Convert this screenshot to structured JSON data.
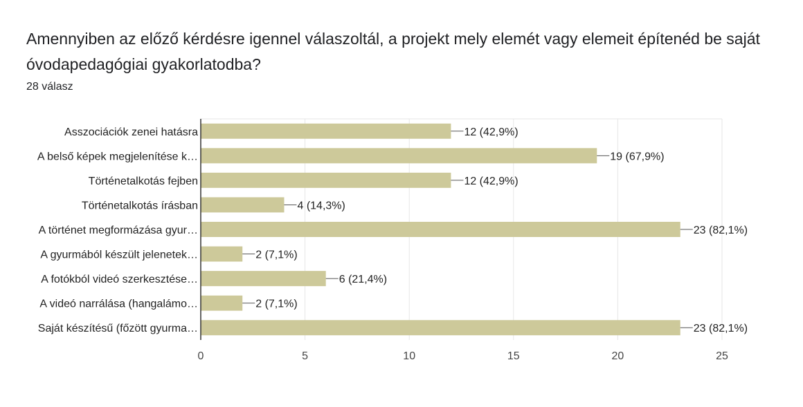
{
  "question": {
    "title": "Amennyiben az előző kérdésre igennel válaszoltál, a projekt mely elemét vagy elemeit építenéd be saját óvodapedagógiai gyakorlatodba?",
    "response_count": "28 válasz"
  },
  "colors": {
    "bar": "#cdc99a",
    "grid": "#e6e6e6",
    "axis": "#333333",
    "text": "#222222"
  },
  "chart_data": {
    "type": "bar",
    "orientation": "horizontal",
    "categories": [
      "Asszociációk zenei hatásra",
      "A belső képek megjelenítése k…",
      "Történetalkotás fejben",
      "Történetalkotás írásban",
      "A történet megformázása gyur…",
      "A gyurmából készült jelenetek…",
      "A fotókból videó szerkesztése…",
      "A videó narrálása (hangalámo…",
      "Saját készítésű (főzött gyurma…"
    ],
    "values": [
      12,
      19,
      12,
      4,
      23,
      2,
      6,
      2,
      23
    ],
    "data_labels": [
      "12 (42,9%)",
      "19 (67,9%)",
      "12 (42,9%)",
      "4 (14,3%)",
      "23 (82,1%)",
      "2 (7,1%)",
      "6 (21,4%)",
      "2 (7,1%)",
      "23 (82,1%)"
    ],
    "xlim": [
      0,
      25
    ],
    "x_ticks": [
      0,
      5,
      10,
      15,
      20,
      25
    ],
    "grid": true,
    "legend": "none"
  }
}
